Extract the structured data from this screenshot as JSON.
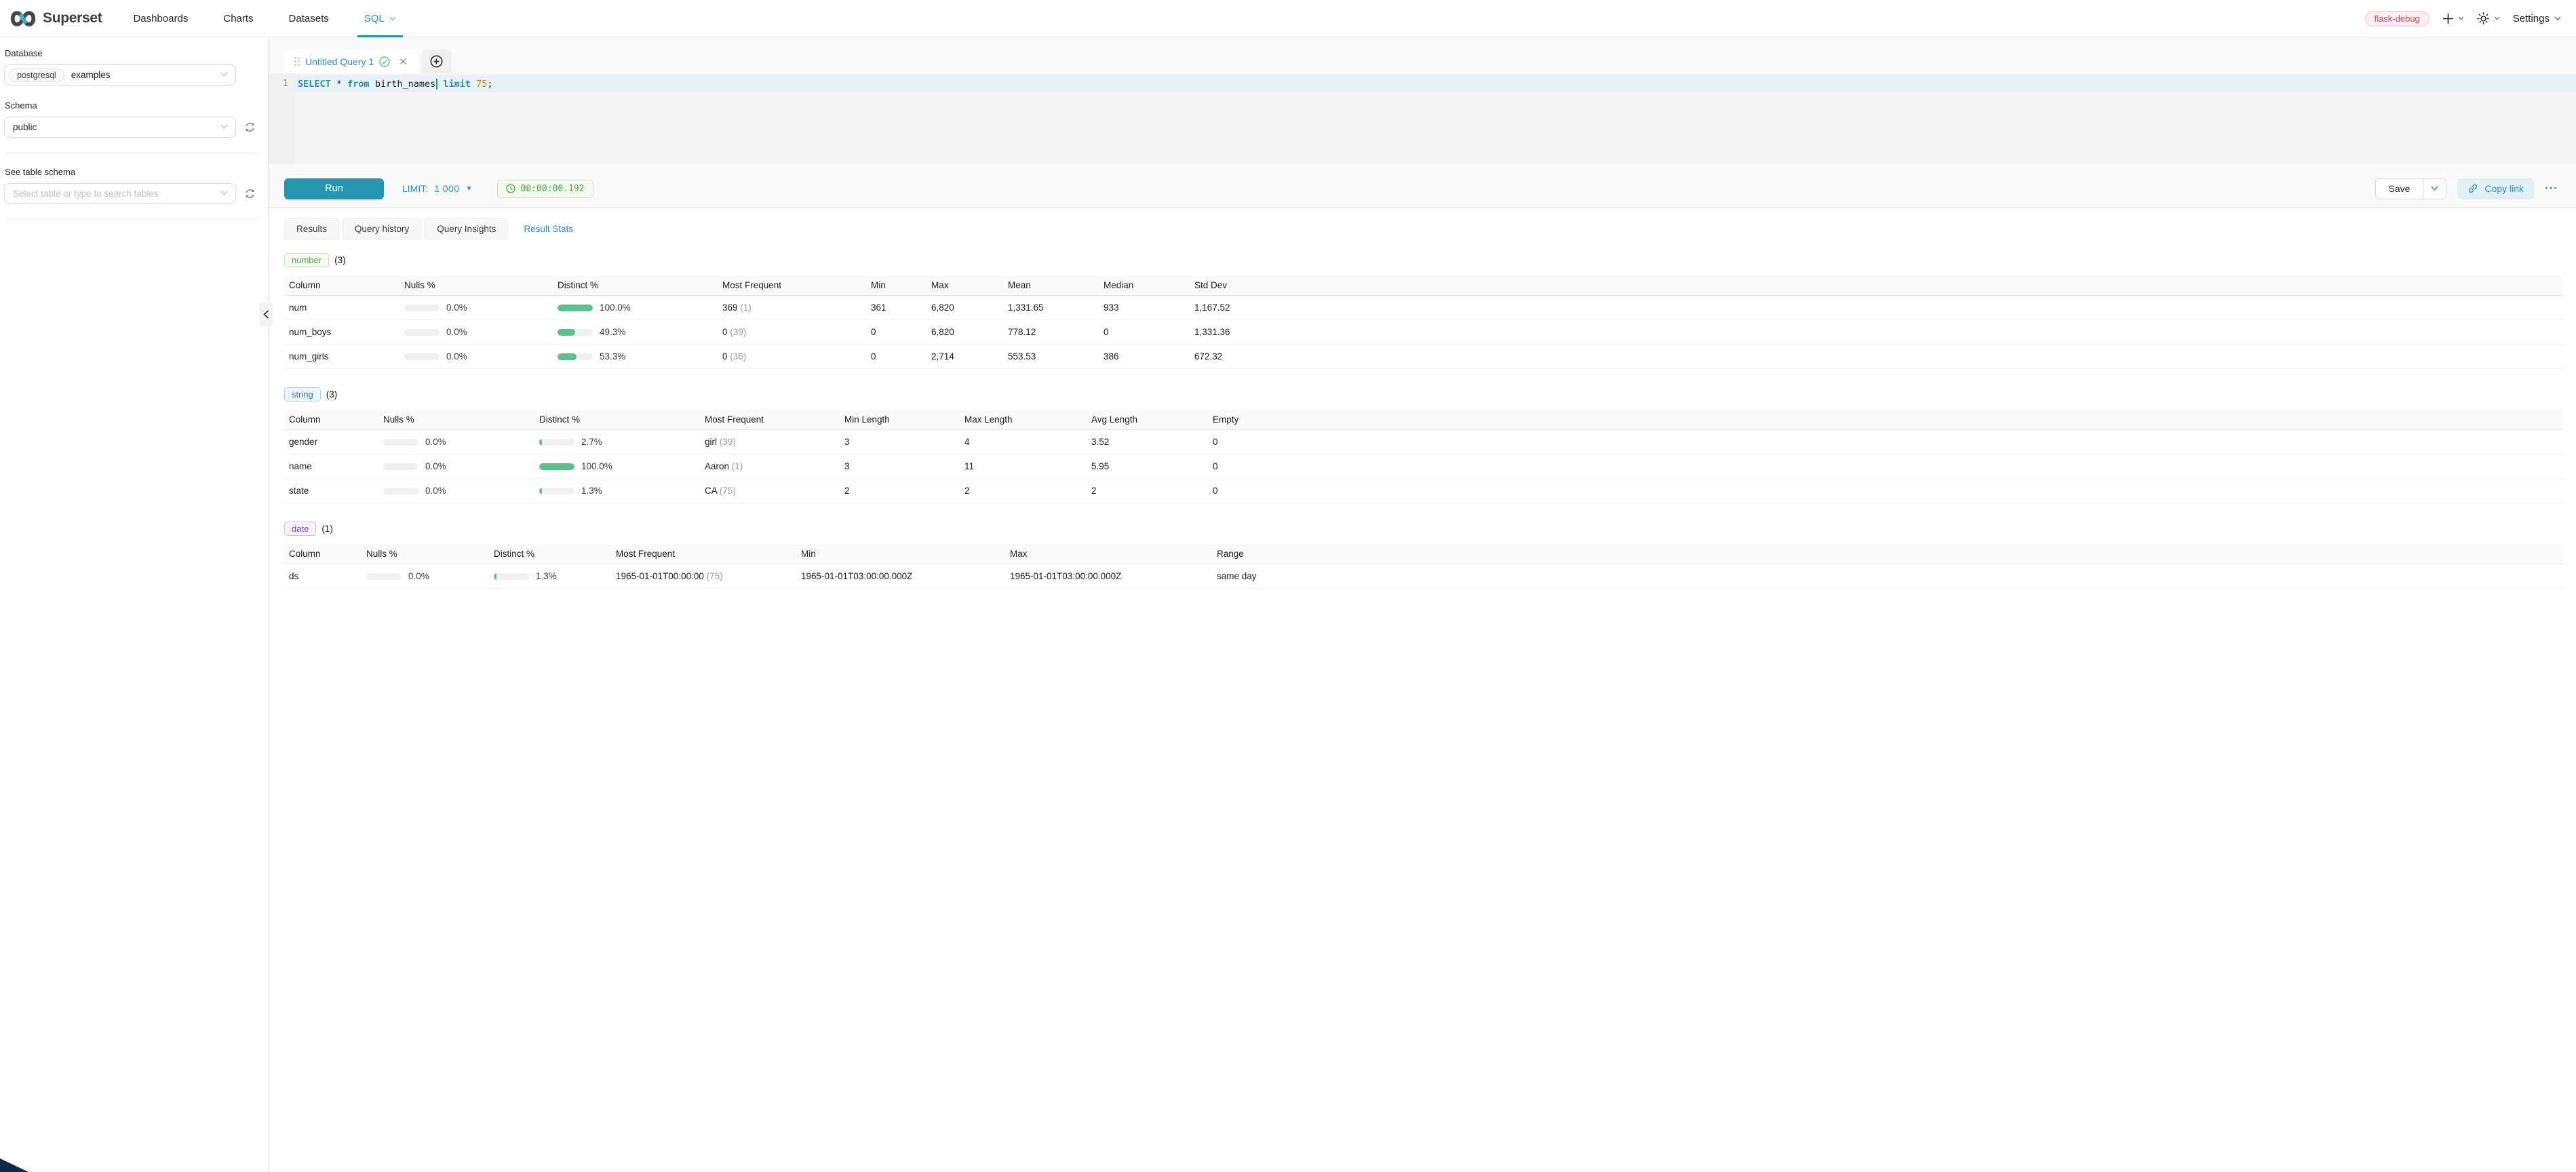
{
  "header": {
    "brand": "Superset",
    "nav": [
      "Dashboards",
      "Charts",
      "Datasets",
      "SQL"
    ],
    "active_nav": "SQL",
    "env_badge": "flask-debug",
    "settings_label": "Settings"
  },
  "sidebar": {
    "database_label": "Database",
    "database_tag": "postgresql",
    "database_value": "examples",
    "schema_label": "Schema",
    "schema_value": "public",
    "table_label": "See table schema",
    "table_placeholder": "Select table or type to search tables"
  },
  "editor": {
    "tab_title": "Untitled Query 1",
    "line_number": "1",
    "sql_tokens": [
      {
        "text": "SELECT",
        "type": "kw"
      },
      {
        "text": " * ",
        "type": "plain"
      },
      {
        "text": "from",
        "type": "kw"
      },
      {
        "text": " birth_names",
        "type": "plain"
      },
      {
        "text": "",
        "type": "caret"
      },
      {
        "text": " ",
        "type": "plain"
      },
      {
        "text": "limit",
        "type": "kw"
      },
      {
        "text": " ",
        "type": "plain"
      },
      {
        "text": "75",
        "type": "num"
      },
      {
        "text": ";",
        "type": "plain"
      }
    ]
  },
  "toolbar": {
    "run_label": "Run",
    "limit_label": "LIMIT:",
    "limit_value": "1 000",
    "timer": "00:00:00.192",
    "save_label": "Save",
    "copy_link_label": "Copy link",
    "more_label": "···"
  },
  "result_tabs": {
    "items": [
      "Results",
      "Query history",
      "Query Insights",
      "Result Stats"
    ],
    "active": "Result Stats"
  },
  "colors": {
    "accent_teal": "#1d95b0",
    "run_button": "#2596ad",
    "progress_green": "#5ac189",
    "timer_green": "#3fa845",
    "env_badge_red": "#e04355",
    "badge_number_green": "#4ca64c",
    "badge_string_blue": "#3473dd",
    "badge_date_purple": "#7b3fd4"
  },
  "sections": [
    {
      "id": "number",
      "badge": "number",
      "count_label": "(3)",
      "columns": [
        "Column",
        "Nulls %",
        "Distinct %",
        "Most Frequent",
        "Min",
        "Max",
        "Mean",
        "Median",
        "Std Dev"
      ],
      "rows": [
        {
          "column": "num",
          "nulls_pct": 0,
          "nulls_label": "0.0%",
          "distinct_pct": 100,
          "distinct_label": "100.0%",
          "most_frequent": {
            "value": "369",
            "count": "(1)"
          },
          "values": [
            "361",
            "6,820",
            "1,331.65",
            "933",
            "1,167.52"
          ]
        },
        {
          "column": "num_boys",
          "nulls_pct": 0,
          "nulls_label": "0.0%",
          "distinct_pct": 49.3,
          "distinct_label": "49.3%",
          "most_frequent": {
            "value": "0",
            "count": "(39)"
          },
          "values": [
            "0",
            "6,820",
            "778.12",
            "0",
            "1,331.36"
          ]
        },
        {
          "column": "num_girls",
          "nulls_pct": 0,
          "nulls_label": "0.0%",
          "distinct_pct": 53.3,
          "distinct_label": "53.3%",
          "most_frequent": {
            "value": "0",
            "count": "(36)"
          },
          "values": [
            "0",
            "2,714",
            "553.53",
            "386",
            "672.32"
          ]
        }
      ]
    },
    {
      "id": "string",
      "badge": "string",
      "count_label": "(3)",
      "columns": [
        "Column",
        "Nulls %",
        "Distinct %",
        "Most Frequent",
        "Min Length",
        "Max Length",
        "Avg Length",
        "Empty"
      ],
      "rows": [
        {
          "column": "gender",
          "nulls_pct": 0,
          "nulls_label": "0.0%",
          "distinct_pct": 2.7,
          "distinct_label": "2.7%",
          "most_frequent": {
            "value": "girl",
            "count": "(39)"
          },
          "values": [
            "3",
            "4",
            "3.52",
            "0"
          ]
        },
        {
          "column": "name",
          "nulls_pct": 0,
          "nulls_label": "0.0%",
          "distinct_pct": 100,
          "distinct_label": "100.0%",
          "most_frequent": {
            "value": "Aaron",
            "count": "(1)"
          },
          "values": [
            "3",
            "11",
            "5.95",
            "0"
          ]
        },
        {
          "column": "state",
          "nulls_pct": 0,
          "nulls_label": "0.0%",
          "distinct_pct": 1.3,
          "distinct_label": "1.3%",
          "most_frequent": {
            "value": "CA",
            "count": "(75)"
          },
          "values": [
            "2",
            "2",
            "2",
            "0"
          ]
        }
      ]
    },
    {
      "id": "date",
      "badge": "date",
      "count_label": "(1)",
      "columns": [
        "Column",
        "Nulls %",
        "Distinct %",
        "Most Frequent",
        "Min",
        "Max",
        "Range"
      ],
      "rows": [
        {
          "column": "ds",
          "nulls_pct": 0,
          "nulls_label": "0.0%",
          "distinct_pct": 1.3,
          "distinct_label": "1.3%",
          "most_frequent": {
            "value": "1965-01-01T00:00:00",
            "count": "(75)"
          },
          "values": [
            "1965-01-01T03:00:00.000Z",
            "1965-01-01T03:00:00.000Z",
            "same day"
          ]
        }
      ]
    }
  ]
}
